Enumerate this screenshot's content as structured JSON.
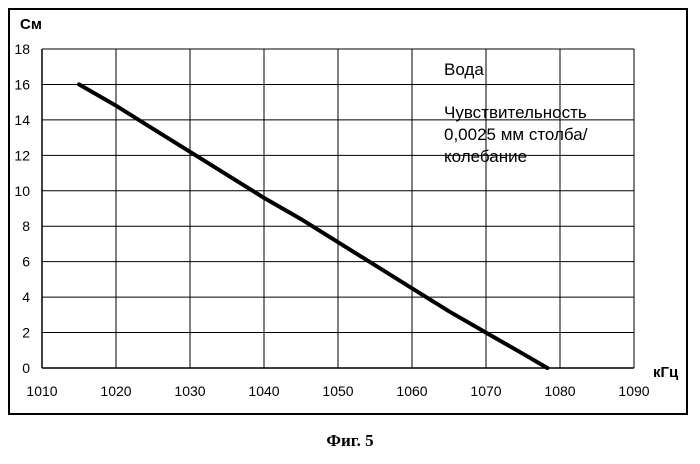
{
  "chart_data": {
    "type": "line",
    "ylabel": "См",
    "xlabel": "кГц",
    "xlim": [
      1010,
      1090
    ],
    "ylim": [
      0,
      18
    ],
    "x_ticks": [
      1010,
      1020,
      1030,
      1040,
      1050,
      1060,
      1070,
      1080,
      1090
    ],
    "y_ticks": [
      0,
      2,
      4,
      6,
      8,
      10,
      12,
      14,
      16,
      18
    ],
    "grid": true,
    "series": [
      {
        "name": "",
        "x": [
          1015,
          1020,
          1025,
          1030,
          1035,
          1040,
          1045,
          1050,
          1055,
          1060,
          1065,
          1070,
          1075,
          1078.3
        ],
        "y": [
          16,
          14.8,
          13.5,
          12.2,
          10.9,
          9.6,
          8.4,
          7.1,
          5.8,
          4.5,
          3.2,
          2.0,
          0.8,
          0
        ]
      }
    ],
    "annotations": [
      "Вода",
      "Чувствительность",
      "0,0025 мм столба/",
      "колебание"
    ]
  },
  "caption": "Фиг. 5"
}
